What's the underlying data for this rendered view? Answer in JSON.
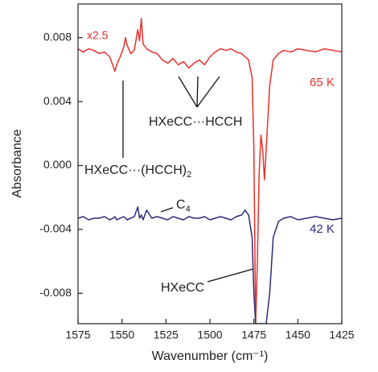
{
  "chart_data": {
    "type": "line",
    "x_label": "Wavenumber (cm⁻¹)",
    "y_label": "Absorbance",
    "xlim": [
      1575,
      1425
    ],
    "xticks": [
      1575,
      1550,
      1525,
      1500,
      1475,
      1450,
      1425
    ],
    "ylim": [
      -0.0099,
      0.0101
    ],
    "yticks": [
      0.008,
      0.004,
      {
        "value": 0,
        "label": "0.000"
      },
      -0.004,
      -0.008
    ],
    "x": [
      1575,
      1572,
      1569,
      1566,
      1563,
      1560,
      1557,
      1555,
      1554,
      1553,
      1551,
      1549,
      1548,
      1547,
      1545,
      1543,
      1541,
      1540,
      1539,
      1538,
      1536,
      1533,
      1530,
      1527,
      1524,
      1521,
      1518,
      1515,
      1512,
      1509,
      1506,
      1503,
      1500,
      1497,
      1494,
      1491,
      1488,
      1485,
      1482,
      1480,
      1478,
      1476,
      1475,
      1474,
      1473,
      1472,
      1471,
      1470,
      1469,
      1468,
      1466,
      1464,
      1461,
      1458,
      1454,
      1450,
      1445,
      1440,
      1435,
      1430,
      1425
    ],
    "series": [
      {
        "name": "65 K",
        "color": "#e8302a",
        "values": [
          0.0073,
          0.0071,
          0.0073,
          0.0072,
          0.007,
          0.0071,
          0.0068,
          0.0062,
          0.0059,
          0.0063,
          0.0068,
          0.0074,
          0.008,
          0.0075,
          0.007,
          0.0072,
          0.0085,
          0.0078,
          0.0092,
          0.0076,
          0.0073,
          0.0071,
          0.007,
          0.0066,
          0.0064,
          0.0067,
          0.0063,
          0.0065,
          0.0061,
          0.0064,
          0.0066,
          0.0063,
          0.0068,
          0.0071,
          0.0073,
          0.0072,
          0.0073,
          0.0071,
          0.007,
          0.0068,
          0.0066,
          0.0055,
          0.001,
          -0.0099,
          -0.006,
          -0.0005,
          0.0019,
          0.001,
          -0.0009,
          0.001,
          0.005,
          0.0066,
          0.007,
          0.0072,
          0.0071,
          0.0073,
          0.0072,
          0.0071,
          0.0073,
          0.0072,
          0.0071
        ]
      },
      {
        "name": "42 K",
        "color": "#2b2a7a",
        "values": [
          -0.0033,
          -0.0032,
          -0.0034,
          -0.0033,
          -0.0033,
          -0.0032,
          -0.0034,
          -0.0033,
          -0.0032,
          -0.0034,
          -0.0033,
          -0.0032,
          -0.0033,
          -0.0034,
          -0.0033,
          -0.0032,
          -0.0026,
          -0.0033,
          -0.0031,
          -0.0034,
          -0.0028,
          -0.0033,
          -0.0032,
          -0.0033,
          -0.0034,
          -0.0032,
          -0.0033,
          -0.0034,
          -0.0032,
          -0.0033,
          -0.0033,
          -0.0032,
          -0.0034,
          -0.0033,
          -0.0032,
          -0.0033,
          -0.0034,
          -0.0032,
          -0.0031,
          -0.0028,
          -0.0031,
          -0.0045,
          -0.008,
          -0.0099,
          -0.0099,
          -0.0099,
          -0.0099,
          -0.0099,
          -0.0099,
          -0.0099,
          -0.008,
          -0.0045,
          -0.0035,
          -0.0033,
          -0.0032,
          -0.0034,
          -0.0033,
          -0.0032,
          -0.0033,
          -0.0034,
          -0.0033
        ]
      }
    ],
    "annotations": [
      {
        "text": "x2.5"
      },
      {
        "text": "HXeCC···HCCH"
      },
      {
        "text": "HXeCC···(HCCH)",
        "sub": "2"
      },
      {
        "text": "C",
        "sub": "4"
      },
      {
        "text": "HXeCC"
      }
    ]
  }
}
